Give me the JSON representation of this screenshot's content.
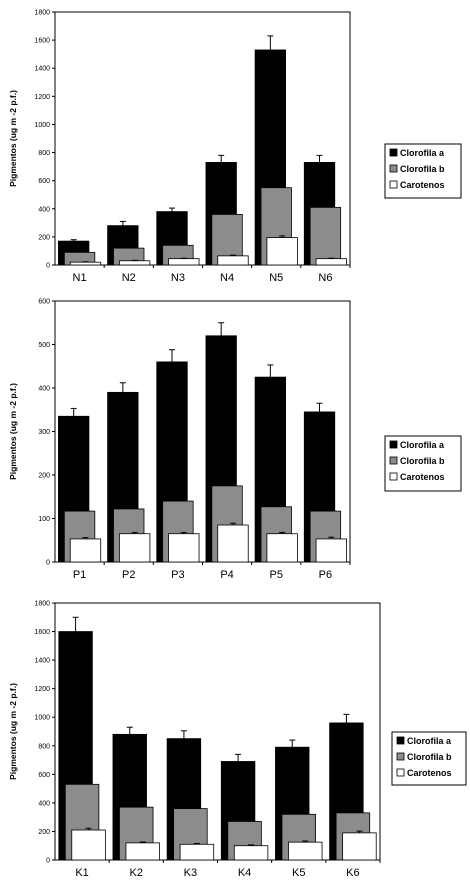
{
  "colors": {
    "series_a": "#000000",
    "series_b": "#8c8c8c",
    "series_c": "#ffffff",
    "axis": "#000000"
  },
  "chart_data": [
    {
      "type": "bar",
      "ylabel": "Pigmentos (ug m -2 p.f.)",
      "ylim": [
        0,
        1800
      ],
      "yticks": [
        0,
        200,
        400,
        600,
        800,
        1000,
        1200,
        1400,
        1600,
        1800
      ],
      "categories": [
        "N1",
        "N2",
        "N3",
        "N4",
        "N5",
        "N6"
      ],
      "legend_position": "right",
      "series": [
        {
          "name": "Clorofila a",
          "values": [
            170,
            280,
            380,
            730,
            1530,
            730
          ],
          "errors": [
            10,
            30,
            25,
            50,
            100,
            50
          ]
        },
        {
          "name": "Clorofila b",
          "values": [
            90,
            120,
            140,
            360,
            550,
            410
          ],
          "errors": [
            0,
            0,
            0,
            0,
            0,
            0
          ]
        },
        {
          "name": "Carotenos",
          "values": [
            20,
            30,
            45,
            65,
            195,
            45
          ],
          "errors": [
            3,
            3,
            3,
            5,
            12,
            3
          ]
        }
      ]
    },
    {
      "type": "bar",
      "ylabel": "Pigmentos (ug m -2 p.f.)",
      "ylim": [
        0,
        600
      ],
      "yticks": [
        0,
        100,
        200,
        300,
        400,
        500,
        600
      ],
      "categories": [
        "P1",
        "P2",
        "P3",
        "P4",
        "P5",
        "P6"
      ],
      "legend_position": "right",
      "series": [
        {
          "name": "Clorofila a",
          "values": [
            335,
            390,
            460,
            520,
            425,
            345
          ],
          "errors": [
            18,
            22,
            28,
            30,
            28,
            20
          ]
        },
        {
          "name": "Clorofila b",
          "values": [
            117,
            122,
            140,
            175,
            127,
            117
          ],
          "errors": [
            0,
            0,
            0,
            0,
            0,
            0
          ]
        },
        {
          "name": "Carotenos",
          "values": [
            53,
            65,
            65,
            85,
            65,
            53
          ],
          "errors": [
            3,
            3,
            3,
            4,
            3,
            4
          ]
        }
      ]
    },
    {
      "type": "bar",
      "ylabel": "Pigmentos (ug m -2 p.f.)",
      "ylim": [
        0,
        1800
      ],
      "yticks": [
        0,
        200,
        400,
        600,
        800,
        1000,
        1200,
        1400,
        1600,
        1800
      ],
      "categories": [
        "K1",
        "K2",
        "K3",
        "K4",
        "K5",
        "K6"
      ],
      "legend_position": "right",
      "series": [
        {
          "name": "Clorofila a",
          "values": [
            1600,
            880,
            850,
            690,
            790,
            960
          ],
          "errors": [
            100,
            50,
            55,
            50,
            50,
            60
          ]
        },
        {
          "name": "Clorofila b",
          "values": [
            530,
            370,
            360,
            270,
            320,
            330
          ],
          "errors": [
            0,
            0,
            0,
            0,
            0,
            0
          ]
        },
        {
          "name": "Carotenos",
          "values": [
            210,
            120,
            110,
            100,
            125,
            190
          ],
          "errors": [
            12,
            6,
            6,
            6,
            8,
            12
          ]
        }
      ]
    }
  ]
}
